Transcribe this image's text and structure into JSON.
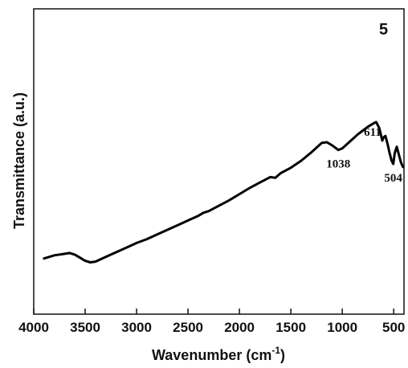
{
  "chart_data": {
    "type": "line",
    "panel_label": "5",
    "xlabel": "Wavenumber (cm",
    "xlabel_sup": "-1",
    "xlabel_end": ")",
    "ylabel": "Transmittance (a.u.)",
    "xlim": [
      4000,
      400
    ],
    "x_reversed": true,
    "y_ticks_shown": false,
    "x_ticks": [
      4000,
      3500,
      3000,
      2500,
      2000,
      1500,
      1000,
      500
    ],
    "x_tick_labels": [
      "4000",
      "3500",
      "3000",
      "2500",
      "2000",
      "1500",
      "1000",
      "500"
    ],
    "ylim": [
      0,
      100
    ],
    "grid": false,
    "annotations": [
      {
        "text": "1038",
        "x": 1038
      },
      {
        "text": "611",
        "x": 611
      },
      {
        "text": "504",
        "x": 504
      }
    ],
    "series": [
      {
        "x": [
          3900,
          3800,
          3700,
          3650,
          3600,
          3550,
          3500,
          3450,
          3400,
          3300,
          3200,
          3100,
          3000,
          2900,
          2800,
          2700,
          2600,
          2500,
          2400,
          2350,
          2300,
          2200,
          2100,
          2000,
          1900,
          1800,
          1700,
          1650,
          1600,
          1500,
          1400,
          1300,
          1200,
          1150,
          1100,
          1050,
          1038,
          1000,
          950,
          900,
          850,
          800,
          750,
          700,
          670,
          640,
          611,
          600,
          580,
          560,
          540,
          520,
          504,
          490,
          470,
          450,
          430,
          410
        ],
        "y": [
          10,
          12,
          13,
          13.5,
          12.5,
          10.5,
          8.5,
          7.5,
          8,
          11,
          14,
          17,
          20,
          22.5,
          25.5,
          28.5,
          31.5,
          34.5,
          37.5,
          39.5,
          40.5,
          44,
          47.5,
          51.5,
          55.5,
          59,
          62.5,
          62,
          65,
          68.5,
          73,
          78.5,
          84.5,
          85,
          83,
          80.5,
          80,
          81,
          84,
          87,
          90,
          92.5,
          95,
          97,
          98,
          94,
          86,
          88,
          89,
          84,
          78,
          73,
          71,
          78,
          82,
          77,
          72,
          69
        ]
      }
    ]
  }
}
